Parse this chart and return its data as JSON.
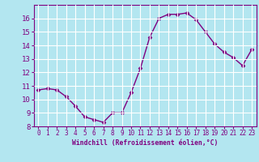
{
  "x": [
    0,
    1,
    2,
    3,
    4,
    5,
    6,
    7,
    8,
    9,
    10,
    11,
    12,
    13,
    14,
    15,
    16,
    17,
    18,
    19,
    20,
    21,
    22,
    23
  ],
  "y": [
    10.7,
    10.8,
    10.7,
    10.2,
    9.5,
    8.7,
    8.5,
    8.3,
    9.0,
    9.0,
    10.5,
    12.3,
    14.6,
    16.0,
    16.3,
    16.3,
    16.4,
    15.9,
    15.0,
    14.1,
    13.5,
    13.1,
    12.5,
    13.7
  ],
  "line_color": "#800080",
  "marker_color": "#800080",
  "bg_color": "#b3e6f0",
  "grid_color": "#ffffff",
  "xlabel": "Windchill (Refroidissement éolien,°C)",
  "ylim": [
    8,
    17
  ],
  "xlim_min": -0.5,
  "xlim_max": 23.5,
  "yticks": [
    8,
    9,
    10,
    11,
    12,
    13,
    14,
    15,
    16
  ],
  "xticks": [
    0,
    1,
    2,
    3,
    4,
    5,
    6,
    7,
    8,
    9,
    10,
    11,
    12,
    13,
    14,
    15,
    16,
    17,
    18,
    19,
    20,
    21,
    22,
    23
  ],
  "axis_color": "#800080",
  "label_color": "#800080",
  "tick_fontsize": 5.5,
  "xlabel_fontsize": 5.8,
  "ylabel_fontsize": 6.5,
  "linewidth": 1.0,
  "markersize": 2.5
}
